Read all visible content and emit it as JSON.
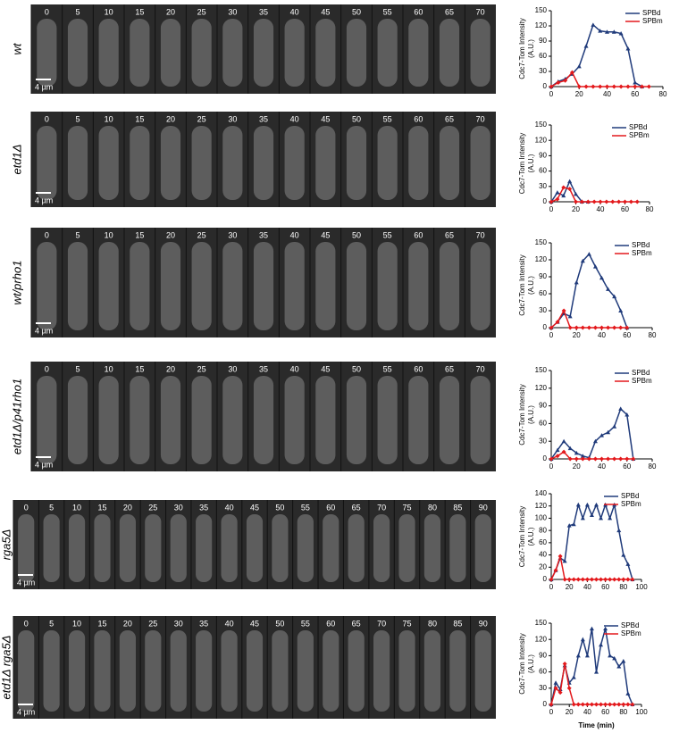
{
  "panels": [
    {
      "label": "wt",
      "times": [
        0,
        5,
        10,
        15,
        20,
        25,
        30,
        35,
        40,
        45,
        50,
        55,
        60,
        65,
        70
      ],
      "scale_bar": "4 µm"
    },
    {
      "label": "etd1Δ",
      "times": [
        0,
        5,
        10,
        15,
        20,
        25,
        30,
        35,
        40,
        45,
        50,
        55,
        60,
        65,
        70
      ],
      "scale_bar": "4 µm"
    },
    {
      "label": "wt/prho1",
      "times": [
        0,
        5,
        10,
        15,
        20,
        25,
        30,
        35,
        40,
        45,
        50,
        55,
        60,
        65,
        70
      ],
      "scale_bar": "4 µm"
    },
    {
      "label": "etd1Δ/p41rho1",
      "times": [
        0,
        5,
        10,
        15,
        20,
        25,
        30,
        35,
        40,
        45,
        50,
        55,
        60,
        65,
        70
      ],
      "scale_bar": "4 µm"
    },
    {
      "label": "rga5Δ",
      "times": [
        0,
        5,
        10,
        15,
        20,
        25,
        30,
        35,
        40,
        45,
        50,
        55,
        60,
        65,
        70,
        75,
        80,
        85,
        90
      ],
      "scale_bar": "4 µm"
    },
    {
      "label": "etd1Δ rga5Δ",
      "times": [
        0,
        5,
        10,
        15,
        20,
        25,
        30,
        35,
        40,
        45,
        50,
        55,
        60,
        65,
        70,
        75,
        80,
        85,
        90
      ],
      "scale_bar": "4 µm"
    }
  ],
  "chart_data": [
    {
      "type": "line",
      "ylabel": [
        "Cdc7-Tom Intensity",
        "(A.U.)"
      ],
      "x": [
        0,
        5,
        10,
        15,
        20,
        25,
        30,
        35,
        40,
        45,
        50,
        55,
        60,
        65,
        70
      ],
      "series": [
        {
          "name": "SPBd",
          "color": "#1f3a7a",
          "values": [
            0,
            10,
            15,
            25,
            40,
            80,
            122,
            110,
            108,
            108,
            105,
            75,
            8,
            0,
            null
          ]
        },
        {
          "name": "SPBm",
          "color": "#e3191c",
          "values": [
            0,
            8,
            12,
            28,
            0,
            0,
            0,
            0,
            0,
            0,
            0,
            0,
            0,
            0,
            0
          ]
        }
      ],
      "xlim": [
        0,
        80
      ],
      "xticks": [
        0,
        20,
        40,
        60,
        80
      ],
      "ylim": [
        0,
        150
      ],
      "yticks": [
        0,
        30,
        60,
        90,
        120,
        150
      ],
      "legend": "upper right"
    },
    {
      "type": "line",
      "ylabel": [
        "Cdc7-Tom Intensity",
        "(A.U.)"
      ],
      "x": [
        0,
        5,
        10,
        15,
        20,
        25,
        30,
        35,
        40,
        45,
        50,
        55,
        60,
        65,
        70
      ],
      "series": [
        {
          "name": "SPBd",
          "color": "#1f3a7a",
          "values": [
            0,
            18,
            12,
            40,
            15,
            0,
            0,
            null,
            null,
            null,
            null,
            null,
            null,
            null,
            null
          ]
        },
        {
          "name": "SPBm",
          "color": "#e3191c",
          "values": [
            0,
            5,
            28,
            25,
            0,
            0,
            0,
            0,
            0,
            0,
            0,
            0,
            0,
            0,
            0
          ]
        }
      ],
      "xlim": [
        0,
        80
      ],
      "xticks": [
        0,
        20,
        40,
        60,
        80
      ],
      "ylim": [
        0,
        150
      ],
      "yticks": [
        0,
        30,
        60,
        90,
        120,
        150
      ],
      "legend": "upper right"
    },
    {
      "type": "line",
      "ylabel": [
        "Cdc7-Tom Intensity",
        "(A.U.)"
      ],
      "x": [
        0,
        5,
        10,
        15,
        20,
        25,
        30,
        35,
        40,
        45,
        50,
        55,
        60
      ],
      "series": [
        {
          "name": "SPBd",
          "color": "#1f3a7a",
          "values": [
            0,
            10,
            25,
            20,
            80,
            118,
            130,
            108,
            88,
            68,
            55,
            30,
            0
          ]
        },
        {
          "name": "SPBm",
          "color": "#e3191c",
          "values": [
            0,
            10,
            30,
            0,
            0,
            0,
            0,
            0,
            0,
            0,
            0,
            0,
            0
          ]
        }
      ],
      "xlim": [
        0,
        80
      ],
      "xticks": [
        0,
        20,
        40,
        60,
        80
      ],
      "ylim": [
        0,
        150
      ],
      "yticks": [
        0,
        30,
        60,
        90,
        120,
        150
      ],
      "legend": "upper right"
    },
    {
      "type": "line",
      "ylabel": [
        "Cdc7-Tom Intensity",
        "(A.U.)"
      ],
      "x": [
        0,
        5,
        10,
        15,
        20,
        25,
        30,
        35,
        40,
        45,
        50,
        55,
        60,
        65
      ],
      "series": [
        {
          "name": "SPBd",
          "color": "#1f3a7a",
          "values": [
            0,
            15,
            30,
            18,
            10,
            5,
            2,
            30,
            40,
            45,
            55,
            85,
            75,
            0
          ]
        },
        {
          "name": "SPBm",
          "color": "#e3191c",
          "values": [
            0,
            5,
            12,
            0,
            0,
            0,
            0,
            0,
            0,
            0,
            0,
            0,
            0,
            0
          ]
        }
      ],
      "xlim": [
        0,
        80
      ],
      "xticks": [
        0,
        20,
        40,
        60,
        80
      ],
      "ylim": [
        0,
        150
      ],
      "yticks": [
        0,
        30,
        60,
        90,
        120,
        150
      ],
      "legend": "upper right"
    },
    {
      "type": "line",
      "ylabel": [
        "Cdc7-Tom Intensity",
        "(A.U.)"
      ],
      "x": [
        0,
        5,
        10,
        15,
        20,
        25,
        30,
        35,
        40,
        45,
        50,
        55,
        60,
        65,
        70,
        75,
        80,
        85,
        90
      ],
      "series": [
        {
          "name": "SPBd",
          "color": "#1f3a7a",
          "values": [
            0,
            15,
            35,
            30,
            88,
            90,
            122,
            100,
            122,
            105,
            122,
            100,
            122,
            100,
            122,
            80,
            40,
            25,
            0
          ]
        },
        {
          "name": "SPBm",
          "color": "#e3191c",
          "values": [
            0,
            15,
            38,
            0,
            0,
            0,
            0,
            0,
            0,
            0,
            0,
            0,
            0,
            0,
            0,
            0,
            0,
            0,
            0
          ]
        }
      ],
      "xlim": [
        0,
        100
      ],
      "xticks": [
        0,
        20,
        40,
        60,
        80,
        100
      ],
      "ylim": [
        0,
        140
      ],
      "yticks": [
        0,
        20,
        40,
        60,
        80,
        100,
        120,
        140
      ],
      "legend": "upper right"
    },
    {
      "type": "line",
      "ylabel": [
        "Cdc7-Tom Intensity",
        "(A.U.)"
      ],
      "xlabel": "Time (min)",
      "x": [
        0,
        5,
        10,
        15,
        20,
        25,
        30,
        35,
        40,
        45,
        50,
        55,
        60,
        65,
        70,
        75,
        80,
        85,
        90
      ],
      "series": [
        {
          "name": "SPBd",
          "color": "#1f3a7a",
          "values": [
            0,
            40,
            28,
            72,
            40,
            50,
            90,
            120,
            90,
            140,
            60,
            110,
            140,
            90,
            85,
            70,
            80,
            20,
            0
          ]
        },
        {
          "name": "SPBm",
          "color": "#e3191c",
          "values": [
            0,
            30,
            22,
            75,
            30,
            0,
            0,
            0,
            0,
            0,
            0,
            0,
            0,
            0,
            0,
            0,
            0,
            0,
            0
          ]
        }
      ],
      "xlim": [
        0,
        100
      ],
      "xticks": [
        0,
        20,
        40,
        60,
        80,
        100
      ],
      "ylim": [
        0,
        150
      ],
      "yticks": [
        0,
        30,
        60,
        90,
        120,
        150
      ],
      "legend": "upper right"
    }
  ]
}
